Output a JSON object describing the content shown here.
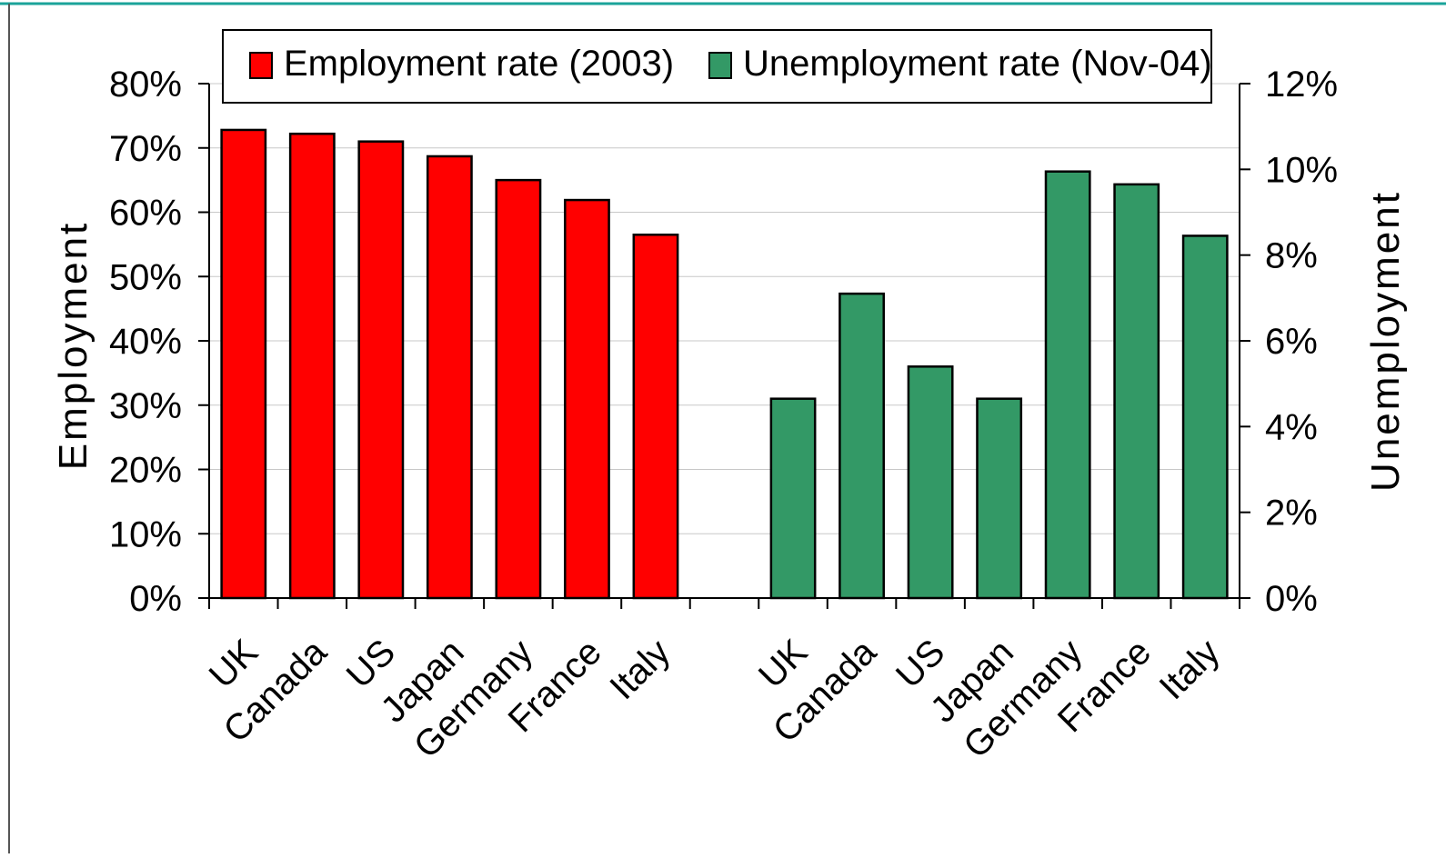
{
  "chart_data": {
    "type": "bar",
    "colors": {
      "employment": "#ff0000",
      "unemployment": "#339966",
      "frame_accent": "#1aa39a"
    },
    "legend": {
      "placement": "top",
      "entries": [
        "Employment rate (2003)",
        "Unemployment rate (Nov-04)"
      ]
    },
    "y_left": {
      "label": "Employment",
      "range": [
        0,
        80
      ],
      "ticks": [
        "0%",
        "10%",
        "20%",
        "30%",
        "40%",
        "50%",
        "60%",
        "70%",
        "80%"
      ]
    },
    "y_right": {
      "label": "Unemployment",
      "range": [
        0,
        12
      ],
      "ticks": [
        "0%",
        "2%",
        "4%",
        "6%",
        "8%",
        "10%",
        "12%"
      ]
    },
    "series": [
      {
        "name": "Employment rate (2003)",
        "axis": "left",
        "categories": [
          "UK",
          "Canada",
          "US",
          "Japan",
          "Germany",
          "France",
          "Italy"
        ],
        "values": [
          72.8,
          72.2,
          71.0,
          68.7,
          65.0,
          61.9,
          56.5
        ]
      },
      {
        "name": "Unemployment rate (Nov-04)",
        "axis": "right",
        "categories": [
          "UK",
          "Canada",
          "US",
          "Japan",
          "Germany",
          "France",
          "Italy"
        ],
        "values": [
          4.65,
          7.1,
          5.4,
          4.65,
          9.95,
          9.65,
          8.45
        ]
      }
    ],
    "grid": true
  }
}
